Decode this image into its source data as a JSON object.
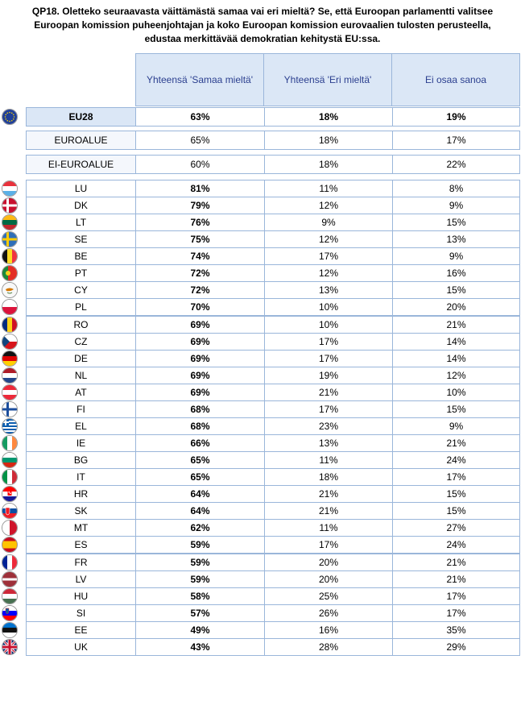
{
  "title_lines": [
    "QP18. Oletteko seuraavasta väittämästä samaa vai eri mieltä? Se, että Euroopan parlamentti valitsee",
    "Euroopan komission puheenjohtajan ja koko Euroopan komission eurovaalien tulosten perusteella,",
    "edustaa merkittävää demokratian kehitystä EU:ssa."
  ],
  "columns": [
    "Yhteensä 'Samaa mieltä'",
    "Yhteensä 'Eri mieltä'",
    "Ei osaa sanoa"
  ],
  "summary_rows": [
    {
      "label": "EU28",
      "v1": "63%",
      "v2": "18%",
      "v3": "19%",
      "flag": "eu",
      "bold_all": true
    },
    {
      "label": "EUROALUE",
      "v1": "65%",
      "v2": "18%",
      "v3": "17%"
    },
    {
      "label": "EI-EUROALUE",
      "v1": "60%",
      "v2": "18%",
      "v3": "22%"
    }
  ],
  "country_rows": [
    {
      "label": "LU",
      "v1": "81%",
      "v2": "11%",
      "v3": "8%",
      "flag": "lu"
    },
    {
      "label": "DK",
      "v1": "79%",
      "v2": "12%",
      "v3": "9%",
      "flag": "dk"
    },
    {
      "label": "LT",
      "v1": "76%",
      "v2": "9%",
      "v3": "15%",
      "flag": "lt"
    },
    {
      "label": "SE",
      "v1": "75%",
      "v2": "12%",
      "v3": "13%",
      "flag": "se"
    },
    {
      "label": "BE",
      "v1": "74%",
      "v2": "17%",
      "v3": "9%",
      "flag": "be"
    },
    {
      "label": "PT",
      "v1": "72%",
      "v2": "12%",
      "v3": "16%",
      "flag": "pt"
    },
    {
      "label": "CY",
      "v1": "72%",
      "v2": "13%",
      "v3": "15%",
      "flag": "cy"
    },
    {
      "label": "PL",
      "v1": "70%",
      "v2": "10%",
      "v3": "20%",
      "flag": "pl"
    },
    {
      "label": "RO",
      "v1": "69%",
      "v2": "10%",
      "v3": "21%",
      "flag": "ro"
    },
    {
      "label": "CZ",
      "v1": "69%",
      "v2": "17%",
      "v3": "14%",
      "flag": "cz"
    },
    {
      "label": "DE",
      "v1": "69%",
      "v2": "17%",
      "v3": "14%",
      "flag": "de"
    },
    {
      "label": "NL",
      "v1": "69%",
      "v2": "19%",
      "v3": "12%",
      "flag": "nl"
    },
    {
      "label": "AT",
      "v1": "69%",
      "v2": "21%",
      "v3": "10%",
      "flag": "at"
    },
    {
      "label": "FI",
      "v1": "68%",
      "v2": "17%",
      "v3": "15%",
      "flag": "fi"
    },
    {
      "label": "EL",
      "v1": "68%",
      "v2": "23%",
      "v3": "9%",
      "flag": "el"
    },
    {
      "label": "IE",
      "v1": "66%",
      "v2": "13%",
      "v3": "21%",
      "flag": "ie"
    },
    {
      "label": "BG",
      "v1": "65%",
      "v2": "11%",
      "v3": "24%",
      "flag": "bg"
    },
    {
      "label": "IT",
      "v1": "65%",
      "v2": "18%",
      "v3": "17%",
      "flag": "it"
    },
    {
      "label": "HR",
      "v1": "64%",
      "v2": "21%",
      "v3": "15%",
      "flag": "hr"
    },
    {
      "label": "SK",
      "v1": "64%",
      "v2": "21%",
      "v3": "15%",
      "flag": "sk"
    },
    {
      "label": "MT",
      "v1": "62%",
      "v2": "11%",
      "v3": "27%",
      "flag": "mt"
    },
    {
      "label": "ES",
      "v1": "59%",
      "v2": "17%",
      "v3": "24%",
      "flag": "es"
    },
    {
      "label": "FR",
      "v1": "59%",
      "v2": "20%",
      "v3": "21%",
      "flag": "fr"
    },
    {
      "label": "LV",
      "v1": "59%",
      "v2": "20%",
      "v3": "21%",
      "flag": "lv"
    },
    {
      "label": "HU",
      "v1": "58%",
      "v2": "25%",
      "v3": "17%",
      "flag": "hu"
    },
    {
      "label": "SI",
      "v1": "57%",
      "v2": "26%",
      "v3": "17%",
      "flag": "si"
    },
    {
      "label": "EE",
      "v1": "49%",
      "v2": "16%",
      "v3": "35%",
      "flag": "ee"
    },
    {
      "label": "UK",
      "v1": "43%",
      "v2": "28%",
      "v3": "29%",
      "flag": "uk"
    }
  ],
  "chart_data": {
    "type": "table",
    "title": "QP18. Oletteko seuraavasta väittämästä samaa vai eri mieltä? Se, että Euroopan parlamentti valitsee Euroopan komission puheenjohtajan ja koko Euroopan komission eurovaalien tulosten perusteella, edustaa merkittävää demokratian kehitystä EU:ssa.",
    "categories": [
      "EU28",
      "EUROALUE",
      "EI-EUROALUE",
      "LU",
      "DK",
      "LT",
      "SE",
      "BE",
      "PT",
      "CY",
      "PL",
      "RO",
      "CZ",
      "DE",
      "NL",
      "AT",
      "FI",
      "EL",
      "IE",
      "BG",
      "IT",
      "HR",
      "SK",
      "MT",
      "ES",
      "FR",
      "LV",
      "HU",
      "SI",
      "EE",
      "UK"
    ],
    "series": [
      {
        "name": "Yhteensä 'Samaa mieltä'",
        "values": [
          63,
          65,
          60,
          81,
          79,
          76,
          75,
          74,
          72,
          72,
          70,
          69,
          69,
          69,
          69,
          69,
          68,
          68,
          66,
          65,
          65,
          64,
          64,
          62,
          59,
          59,
          59,
          58,
          57,
          49,
          43
        ]
      },
      {
        "name": "Yhteensä 'Eri mieltä'",
        "values": [
          18,
          18,
          18,
          11,
          12,
          9,
          12,
          17,
          12,
          13,
          10,
          10,
          17,
          17,
          19,
          21,
          17,
          23,
          13,
          11,
          18,
          21,
          21,
          11,
          17,
          20,
          20,
          25,
          26,
          16,
          28
        ]
      },
      {
        "name": "Ei osaa sanoa",
        "values": [
          19,
          17,
          22,
          8,
          9,
          15,
          13,
          9,
          16,
          15,
          20,
          21,
          14,
          14,
          12,
          10,
          15,
          9,
          21,
          24,
          17,
          15,
          15,
          27,
          24,
          21,
          21,
          17,
          17,
          35,
          29
        ]
      }
    ]
  }
}
